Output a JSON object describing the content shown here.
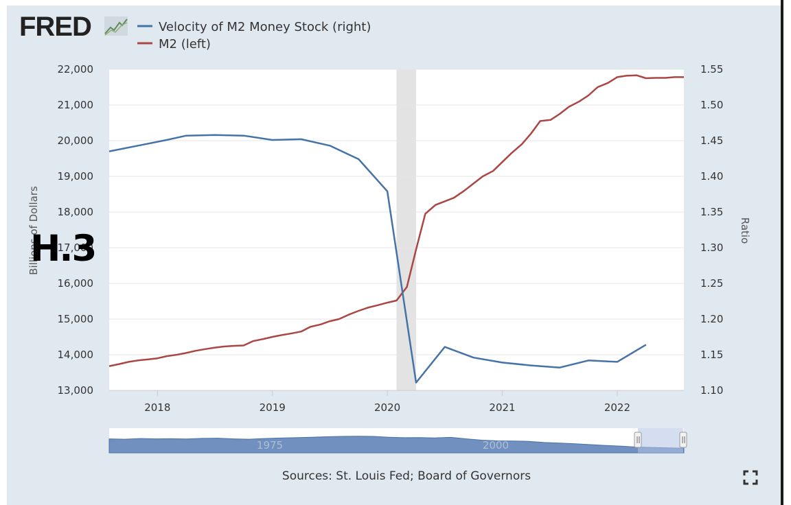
{
  "brand": {
    "logo_text": "FRED"
  },
  "overlay_label": "H.3",
  "source_note": "Sources: St. Louis Fed; Board of Governors",
  "icons": {
    "fullscreen": "fullscreen-expand-icon",
    "logo_graph": "fred-line-graph-icon"
  },
  "colors": {
    "velocity": "#4572a7",
    "m2": "#aa4643",
    "recession": "#e3e3e3",
    "background": "#e1e9f0",
    "navigator_fill": "#7190bf"
  },
  "chart_data": {
    "type": "line",
    "legend_placement": "top-left",
    "grid": "horizontal",
    "x_ticks": [
      "2018",
      "2019",
      "2020",
      "2021",
      "2022"
    ],
    "x_range": [
      2017.58,
      2022.58
    ],
    "left_axis": {
      "label": "Billions of Dollars",
      "ylim": [
        13000,
        22000
      ],
      "ticks": [
        "13,000",
        "14,000",
        "15,000",
        "16,000",
        "17,000",
        "18,000",
        "19,000",
        "20,000",
        "21,000",
        "22,000"
      ]
    },
    "right_axis": {
      "label": "Ratio",
      "ylim": [
        1.1,
        1.55
      ],
      "ticks": [
        "1.10",
        "1.15",
        "1.20",
        "1.25",
        "1.30",
        "1.35",
        "1.40",
        "1.45",
        "1.50",
        "1.55"
      ]
    },
    "recession_shading": [
      2020.08,
      2020.25
    ],
    "series": [
      {
        "name": "Velocity of M2 Money Stock (right)",
        "axis": "right",
        "color": "#4572a7",
        "x": [
          2017.58,
          2017.83,
          2018.08,
          2018.25,
          2018.5,
          2018.75,
          2019.0,
          2019.25,
          2019.5,
          2019.75,
          2020.0,
          2020.25,
          2020.5,
          2020.75,
          2021.0,
          2021.25,
          2021.5,
          2021.75,
          2022.0,
          2022.25
        ],
        "values": [
          1.435,
          1.443,
          1.451,
          1.457,
          1.458,
          1.457,
          1.451,
          1.452,
          1.443,
          1.424,
          1.379,
          1.111,
          1.161,
          1.146,
          1.139,
          1.135,
          1.132,
          1.142,
          1.14,
          1.164
        ]
      },
      {
        "name": "M2 (left)",
        "axis": "left",
        "color": "#aa4643",
        "x": [
          2017.58,
          2017.67,
          2017.75,
          2017.83,
          2017.92,
          2018.0,
          2018.08,
          2018.17,
          2018.25,
          2018.33,
          2018.42,
          2018.5,
          2018.58,
          2018.67,
          2018.75,
          2018.83,
          2018.92,
          2019.0,
          2019.08,
          2019.17,
          2019.25,
          2019.33,
          2019.42,
          2019.5,
          2019.58,
          2019.67,
          2019.75,
          2019.83,
          2019.92,
          2020.0,
          2020.08,
          2020.17,
          2020.25,
          2020.33,
          2020.42,
          2020.5,
          2020.58,
          2020.67,
          2020.75,
          2020.83,
          2020.92,
          2021.0,
          2021.08,
          2021.17,
          2021.25,
          2021.33,
          2021.42,
          2021.5,
          2021.58,
          2021.67,
          2021.75,
          2021.83,
          2021.92,
          2022.0,
          2022.08,
          2022.17,
          2022.25,
          2022.33,
          2022.42,
          2022.5,
          2022.58
        ],
        "values": [
          13680,
          13740,
          13800,
          13840,
          13870,
          13900,
          13960,
          14000,
          14050,
          14110,
          14160,
          14200,
          14230,
          14250,
          14260,
          14380,
          14440,
          14500,
          14550,
          14600,
          14650,
          14780,
          14850,
          14940,
          15000,
          15130,
          15230,
          15320,
          15390,
          15460,
          15520,
          15900,
          16950,
          17950,
          18200,
          18300,
          18400,
          18600,
          18800,
          19000,
          19150,
          19400,
          19650,
          19900,
          20200,
          20550,
          20580,
          20750,
          20950,
          21100,
          21270,
          21500,
          21620,
          21780,
          21820,
          21830,
          21750,
          21760,
          21760,
          21780,
          21780
        ]
      }
    ],
    "navigator": {
      "tick_labels": [
        "1975",
        "2000"
      ]
    }
  }
}
